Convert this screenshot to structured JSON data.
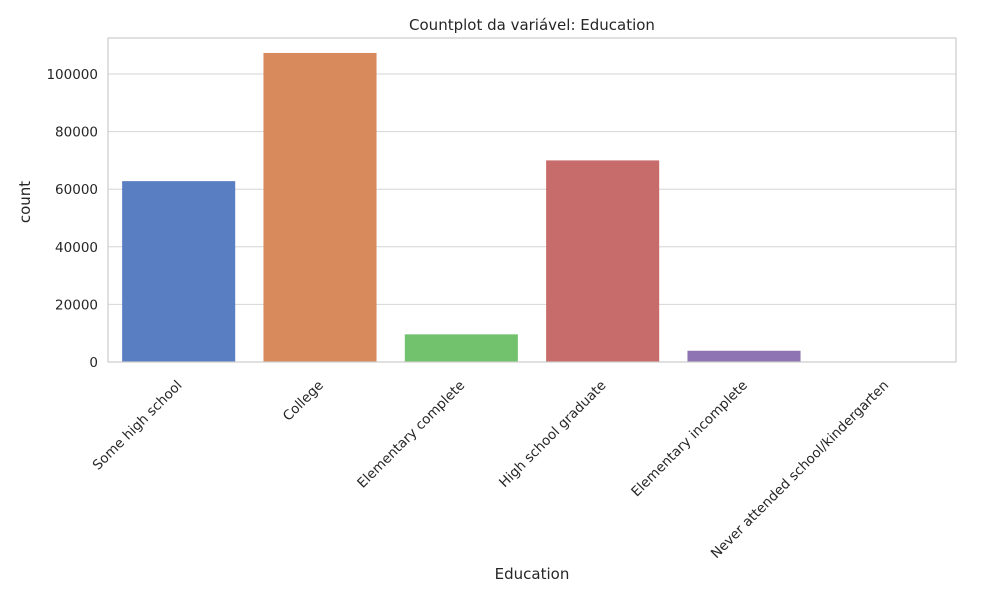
{
  "chart_data": {
    "type": "bar",
    "title": "Countplot da variável: Education",
    "xlabel": "Education",
    "ylabel": "count",
    "categories": [
      "Some high school",
      "College",
      "Elementary complete",
      "High school graduate",
      "Elementary incomplete",
      "Never attended school/kindergarten"
    ],
    "values": [
      62800,
      107300,
      9600,
      70000,
      3900,
      150
    ],
    "colors": [
      "#5a7ec2",
      "#d98a5c",
      "#72c16c",
      "#c76b6b",
      "#8e74b3",
      "#957a6c"
    ],
    "ylim": [
      0,
      112500
    ],
    "yticks": [
      0,
      20000,
      40000,
      60000,
      80000,
      100000
    ],
    "ytick_labels": [
      "0",
      "20000",
      "40000",
      "60000",
      "80000",
      "100000"
    ],
    "grid": "horizontal",
    "xtick_rotation": 45
  }
}
